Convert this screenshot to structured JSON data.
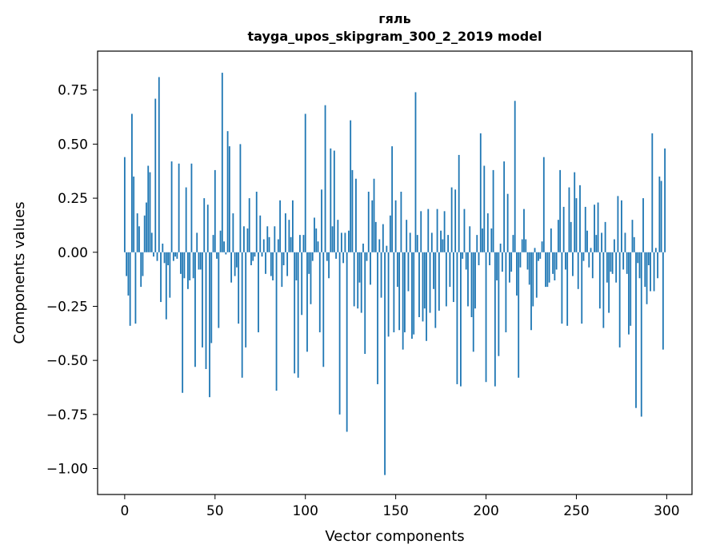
{
  "chart_data": {
    "type": "bar",
    "title": "гяль",
    "subtitle": "tayga_upos_skipgram_300_2_2019 model",
    "xlabel": "Vector components",
    "ylabel": "Components values",
    "xlim": [
      -15,
      314
    ],
    "ylim": [
      -1.12,
      0.93
    ],
    "x_ticks": [
      0,
      50,
      100,
      150,
      200,
      250,
      300
    ],
    "x_tick_labels": [
      "0",
      "50",
      "100",
      "150",
      "200",
      "250",
      "300"
    ],
    "y_ticks": [
      -1.0,
      -0.75,
      -0.5,
      -0.25,
      0.0,
      0.25,
      0.5,
      0.75
    ],
    "y_tick_labels": [
      "−1.00",
      "−0.75",
      "−0.50",
      "−0.25",
      "0.00",
      "0.25",
      "0.50",
      "0.75"
    ],
    "bar_color": "#1f77b4",
    "grid": false,
    "legend": "none",
    "series": [
      {
        "values": [
          0.44,
          -0.11,
          -0.2,
          -0.34,
          0.64,
          0.35,
          -0.33,
          0.18,
          0.12,
          -0.16,
          -0.11,
          0.17,
          0.23,
          0.4,
          0.37,
          0.09,
          -0.02,
          0.71,
          -0.04,
          0.81,
          -0.23,
          0.04,
          -0.05,
          -0.31,
          -0.06,
          -0.21,
          0.42,
          -0.04,
          -0.02,
          -0.03,
          0.41,
          -0.1,
          -0.65,
          -0.12,
          0.3,
          -0.17,
          -0.13,
          0.41,
          -0.12,
          -0.53,
          0.09,
          -0.08,
          -0.08,
          -0.44,
          0.25,
          -0.54,
          0.22,
          -0.67,
          -0.42,
          0.08,
          0.38,
          -0.03,
          -0.35,
          0.1,
          0.83,
          0.05,
          -0.01,
          0.56,
          0.49,
          -0.14,
          0.18,
          -0.11,
          -0.07,
          -0.33,
          0.5,
          -0.58,
          0.12,
          -0.44,
          0.11,
          0.25,
          -0.06,
          -0.04,
          -0.02,
          0.28,
          -0.37,
          0.17,
          -0.02,
          0.06,
          -0.1,
          0.12,
          0.07,
          -0.11,
          -0.13,
          0.12,
          -0.64,
          0.06,
          0.24,
          -0.16,
          -0.06,
          0.18,
          -0.11,
          0.15,
          0.07,
          0.24,
          -0.56,
          -0.13,
          -0.58,
          0.08,
          -0.29,
          0.08,
          0.64,
          -0.46,
          -0.1,
          -0.24,
          -0.04,
          0.16,
          0.11,
          0.05,
          -0.37,
          0.29,
          -0.53,
          0.68,
          -0.04,
          -0.12,
          0.48,
          0.12,
          0.47,
          -0.03,
          0.15,
          -0.75,
          0.09,
          -0.05,
          0.09,
          -0.83,
          0.1,
          0.61,
          0.38,
          -0.25,
          0.34,
          -0.26,
          -0.14,
          -0.28,
          0.04,
          -0.47,
          -0.04,
          0.28,
          -0.15,
          0.24,
          0.34,
          0.14,
          -0.61,
          0.06,
          -0.21,
          0.13,
          -1.03,
          0.03,
          -0.39,
          0.17,
          0.49,
          -0.37,
          0.24,
          -0.16,
          -0.36,
          0.28,
          -0.45,
          -0.37,
          0.15,
          -0.18,
          0.09,
          -0.4,
          -0.38,
          0.74,
          0.08,
          -0.3,
          0.19,
          -0.32,
          -0.26,
          -0.41,
          0.2,
          -0.28,
          0.09,
          -0.17,
          -0.35,
          0.2,
          -0.27,
          0.1,
          0.06,
          0.19,
          -0.25,
          0.08,
          -0.16,
          0.3,
          -0.23,
          0.29,
          -0.61,
          0.45,
          -0.62,
          -0.03,
          0.2,
          -0.08,
          -0.25,
          0.12,
          -0.3,
          -0.46,
          -0.26,
          0.08,
          -0.06,
          0.55,
          0.11,
          0.4,
          -0.6,
          0.18,
          -0.06,
          0.11,
          0.38,
          -0.62,
          -0.13,
          -0.48,
          0.04,
          -0.09,
          0.42,
          -0.37,
          0.27,
          -0.14,
          -0.09,
          0.08,
          0.7,
          -0.2,
          -0.58,
          -0.07,
          0.06,
          0.2,
          0.06,
          -0.08,
          -0.15,
          -0.36,
          -0.25,
          0.02,
          -0.21,
          -0.04,
          -0.03,
          0.05,
          0.44,
          -0.16,
          -0.16,
          -0.14,
          0.11,
          -0.1,
          -0.13,
          -0.08,
          0.15,
          0.38,
          -0.33,
          0.21,
          -0.08,
          -0.34,
          0.3,
          0.14,
          -0.11,
          0.37,
          0.25,
          -0.17,
          0.31,
          -0.33,
          -0.04,
          0.21,
          0.1,
          -0.07,
          0.02,
          -0.12,
          0.22,
          0.08,
          0.23,
          -0.26,
          0.09,
          -0.35,
          0.14,
          -0.14,
          -0.28,
          -0.09,
          -0.1,
          0.06,
          -0.14,
          0.26,
          -0.44,
          0.24,
          -0.08,
          0.09,
          -0.1,
          -0.38,
          -0.34,
          0.15,
          0.07,
          -0.72,
          -0.05,
          -0.12,
          -0.76,
          0.25,
          -0.16,
          -0.24,
          -0.06,
          -0.18,
          0.55,
          -0.18,
          0.02,
          -0.12,
          0.35,
          0.33,
          -0.45,
          0.48
        ]
      }
    ]
  }
}
